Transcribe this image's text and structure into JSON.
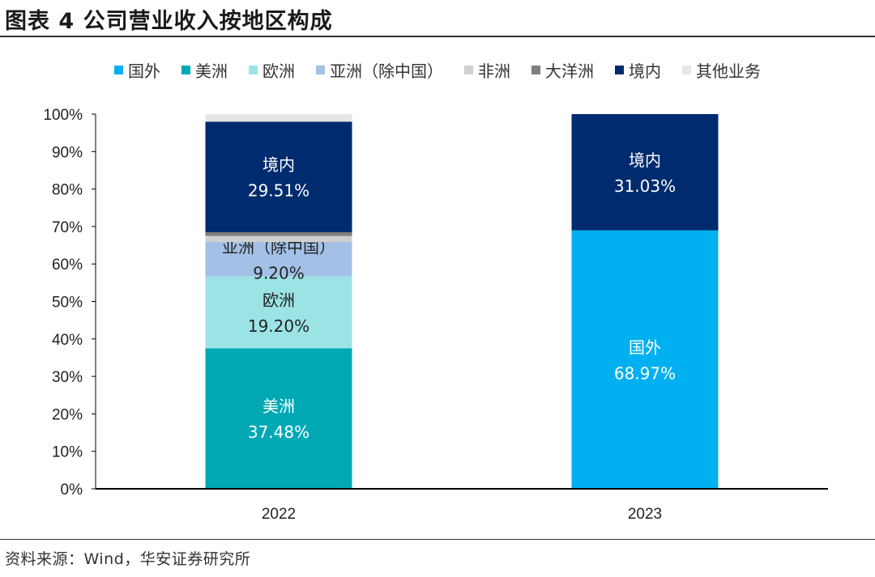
{
  "title": "图表 4 公司营业收入按地区构成",
  "source": "资料来源：Wind，华安证券研究所",
  "chart_data": {
    "type": "bar",
    "stacked": true,
    "categories": [
      "2022",
      "2023"
    ],
    "ylim": [
      0,
      100
    ],
    "yticks": [
      "0%",
      "10%",
      "20%",
      "30%",
      "40%",
      "50%",
      "60%",
      "70%",
      "80%",
      "90%",
      "100%"
    ],
    "legend_position": "top",
    "grid": false,
    "series": [
      {
        "name": "国外",
        "color": "#00b0f0",
        "values": [
          0,
          68.97
        ],
        "labels": [
          "",
          "68.97%"
        ]
      },
      {
        "name": "美洲",
        "color": "#00a8b4",
        "values": [
          37.48,
          0
        ],
        "labels": [
          "37.48%",
          ""
        ]
      },
      {
        "name": "欧洲",
        "color": "#9ce3e6",
        "values": [
          19.2,
          0
        ],
        "labels": [
          "19.20%",
          ""
        ]
      },
      {
        "name": "亚洲（除中国）",
        "color": "#a3c0e6",
        "values": [
          9.2,
          0
        ],
        "labels": [
          "9.20%",
          ""
        ]
      },
      {
        "name": "非洲",
        "color": "#d0d0d0",
        "values": [
          1.6,
          0
        ],
        "labels": [
          "",
          ""
        ]
      },
      {
        "name": "大洋洲",
        "color": "#7f7f7f",
        "values": [
          1.0,
          0
        ],
        "labels": [
          "",
          ""
        ]
      },
      {
        "name": "境内",
        "color": "#002b6e",
        "values": [
          29.51,
          31.03
        ],
        "labels": [
          "29.51%",
          "31.03%"
        ]
      },
      {
        "name": "其他业务",
        "color": "#e6e6e6",
        "values": [
          2.0,
          0
        ],
        "labels": [
          "",
          ""
        ]
      }
    ]
  }
}
